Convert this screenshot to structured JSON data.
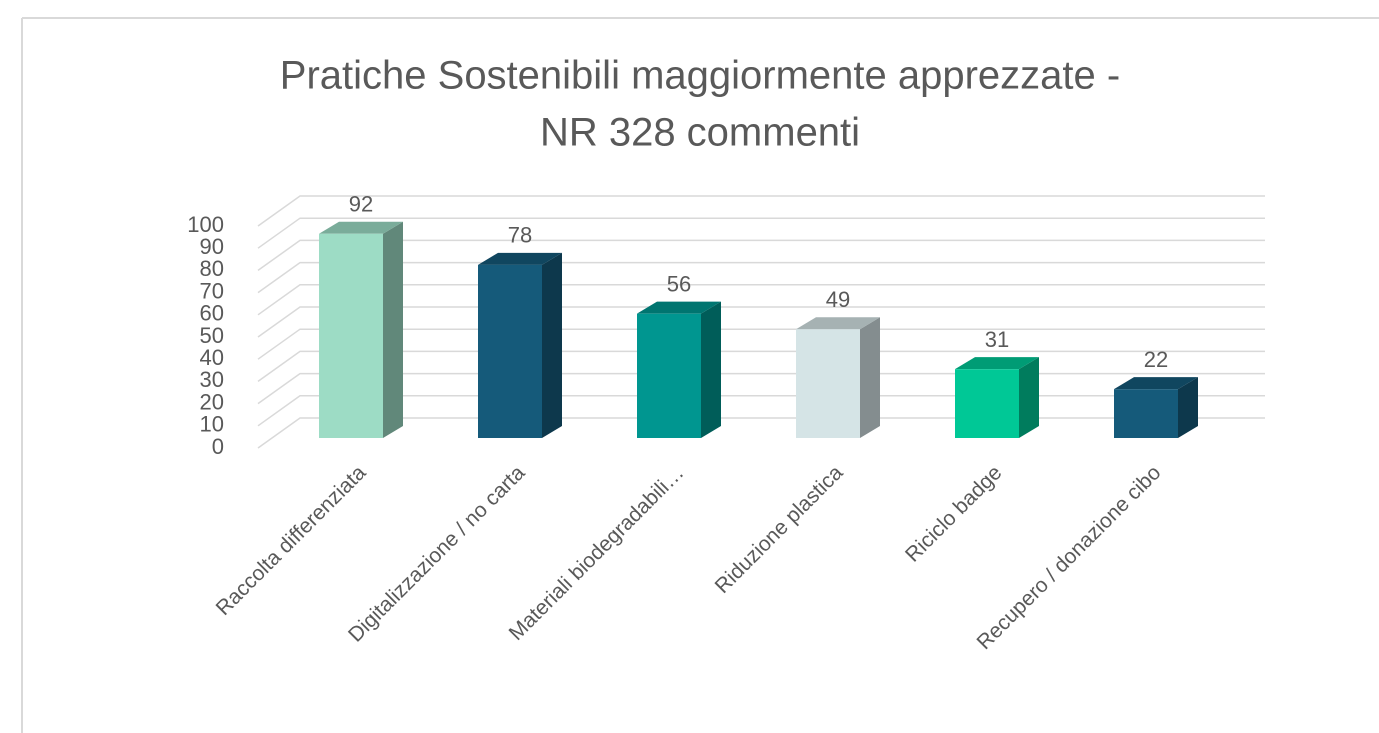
{
  "chart_data": {
    "type": "bar3d",
    "title": "Pratiche Sostenibili maggiormente apprezzate -",
    "subtitle": "NR 328 commenti",
    "categories": [
      "Raccolta differenziata",
      "Digitalizzazione / no carta",
      "Materiali biodegradabili…",
      "Riduzione plastica",
      "Riciclo badge",
      "Recupero / donazione cibo"
    ],
    "values": [
      92,
      78,
      56,
      49,
      31,
      22
    ],
    "colors": [
      "#9ddcc5",
      "#155a7a",
      "#009690",
      "#d5e4e6",
      "#00c896",
      "#155a7a"
    ],
    "ylim": [
      0,
      100
    ],
    "yticks": [
      0,
      10,
      20,
      30,
      40,
      50,
      60,
      70,
      80,
      90,
      100
    ],
    "grid": true
  }
}
